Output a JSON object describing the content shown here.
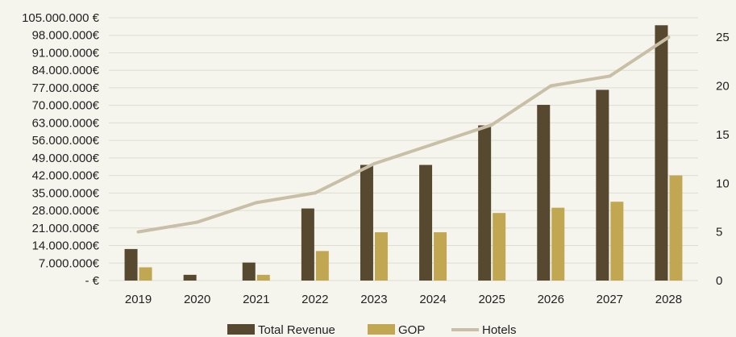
{
  "chart_data": {
    "type": "bar",
    "categories": [
      "2019",
      "2020",
      "2021",
      "2022",
      "2023",
      "2024",
      "2025",
      "2026",
      "2027",
      "2028"
    ],
    "series": [
      {
        "name": "Total Revenue",
        "type": "bar",
        "axis": "left",
        "color": "#574830",
        "values": [
          12600000,
          2300000,
          7200000,
          28800000,
          46200000,
          46200000,
          62000000,
          70200000,
          76200000,
          102000000
        ]
      },
      {
        "name": "GOP",
        "type": "bar",
        "axis": "left",
        "color": "#c2a752",
        "values": [
          5300000,
          0,
          2300000,
          11800000,
          19300000,
          19300000,
          27000000,
          29100000,
          31500000,
          42000000
        ]
      },
      {
        "name": "Hotels",
        "type": "line",
        "axis": "right",
        "color": "#c9bfa6",
        "values": [
          5,
          6,
          8,
          9,
          12,
          14,
          16,
          20,
          21,
          25
        ]
      }
    ],
    "y_left": {
      "min": 0,
      "max": 105000000,
      "tick_labels": [
        "-  €",
        "7.000.000€",
        "14.000.000€",
        "21.000.000€",
        "28.000.000€",
        "35.000.000€",
        "42.000.000€",
        "49.000.000€",
        "56.000.000€",
        "63.000.000€",
        "70.000.000€",
        "77.000.000€",
        "84.000.000€",
        "91.000.000€",
        "98.000.000€",
        "105.000.000 €"
      ]
    },
    "y_right": {
      "min": 0,
      "max": 27,
      "ticks": [
        0,
        5,
        10,
        15,
        20,
        25
      ]
    },
    "grid": true,
    "legend_position": "bottom",
    "background": "#f5f5ee",
    "grid_color": "#ddddd2"
  }
}
